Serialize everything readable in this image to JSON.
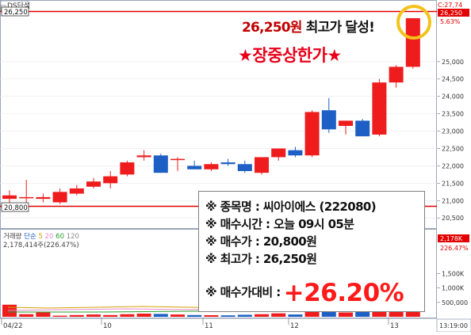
{
  "chart_title": "DS단석",
  "price_label_top": "26,250",
  "price_label_bottom": "20,800",
  "headline": {
    "price": "26,250원",
    "text": "최고가 달성!"
  },
  "headline2": "★장중상한가★",
  "axis_right": {
    "top_value": "C:27,74",
    "current": "26,250",
    "pct": "5.63%",
    "ticks": [
      "25,000",
      "24,500",
      "24,000",
      "23,500",
      "23,000",
      "22,500",
      "22,000",
      "21,500",
      "21,000",
      "20,500"
    ]
  },
  "volume": {
    "legend": {
      "name": "거래량",
      "ma_label": "단순",
      "ma5": "5",
      "ma20": "20",
      "ma60": "60",
      "ma120": "120"
    },
    "current_text": "2,178,414주(226.47%)",
    "axis_current": "2,178K",
    "axis_pct": "226.47%",
    "ticks": [
      "1,500K",
      "1,000K",
      "500,000"
    ]
  },
  "time_axis": {
    "labels": [
      "04/22",
      "10",
      "11",
      "12",
      "13"
    ],
    "right_time": "13:19:00"
  },
  "info_box": {
    "name_label": "※ 종목명 : 씨아이에스 (222080)",
    "time_label": "※ 매수시간 : 오늘 09시 05분",
    "buy_price_label": "※ 매수가 : 20,800원",
    "high_price_label": "※ 최고가 : 26,250원",
    "gain_label": "※ 매수가대비 :",
    "gain_value": "+26.20%"
  },
  "colors": {
    "up": "#ee1c1c",
    "down": "#1d5fc4",
    "ma5": "#d4a000",
    "ma20": "#e58ad0",
    "ma60": "#2a9d2a",
    "ma120": "#8a8a8a"
  },
  "chart_data": {
    "type": "candlestick",
    "ylim": [
      20300,
      26500
    ],
    "candles": [
      {
        "o": 21050,
        "h": 21300,
        "l": 20700,
        "c": 21150
      },
      {
        "o": 21100,
        "h": 21600,
        "l": 20900,
        "c": 21100
      },
      {
        "o": 21050,
        "h": 21200,
        "l": 20950,
        "c": 21100
      },
      {
        "o": 20950,
        "h": 21350,
        "l": 20900,
        "c": 21250
      },
      {
        "o": 21200,
        "h": 21450,
        "l": 21150,
        "c": 21350
      },
      {
        "o": 21400,
        "h": 21650,
        "l": 21350,
        "c": 21550
      },
      {
        "o": 21500,
        "h": 21850,
        "l": 21350,
        "c": 21700
      },
      {
        "o": 21750,
        "h": 22150,
        "l": 21700,
        "c": 22100
      },
      {
        "o": 22250,
        "h": 22450,
        "l": 22150,
        "c": 22300
      },
      {
        "o": 22300,
        "h": 22350,
        "l": 21800,
        "c": 21800
      },
      {
        "o": 22200,
        "h": 22250,
        "l": 21850,
        "c": 22200
      },
      {
        "o": 22000,
        "h": 22150,
        "l": 21900,
        "c": 21900
      },
      {
        "o": 21900,
        "h": 22100,
        "l": 21850,
        "c": 22050
      },
      {
        "o": 22100,
        "h": 22200,
        "l": 22000,
        "c": 22050
      },
      {
        "o": 22050,
        "h": 22150,
        "l": 21800,
        "c": 21850
      },
      {
        "o": 21800,
        "h": 22250,
        "l": 21750,
        "c": 22250
      },
      {
        "o": 22250,
        "h": 22500,
        "l": 22150,
        "c": 22500
      },
      {
        "o": 22450,
        "h": 22550,
        "l": 22250,
        "c": 22300
      },
      {
        "o": 22300,
        "h": 23600,
        "l": 22250,
        "c": 23550
      },
      {
        "o": 23600,
        "h": 23950,
        "l": 22950,
        "c": 23050
      },
      {
        "o": 23150,
        "h": 23300,
        "l": 22900,
        "c": 23300
      },
      {
        "o": 23300,
        "h": 23350,
        "l": 22850,
        "c": 22850
      },
      {
        "o": 22900,
        "h": 24500,
        "l": 22850,
        "c": 24400
      },
      {
        "o": 24400,
        "h": 24900,
        "l": 24250,
        "c": 24850
      },
      {
        "o": 24850,
        "h": 26250,
        "l": 24800,
        "c": 26250
      }
    ],
    "volume": [
      420,
      90,
      150,
      40,
      60,
      80,
      60,
      90,
      110,
      100,
      80,
      60,
      55,
      50,
      70,
      90,
      120,
      80,
      380,
      260,
      150,
      170,
      350,
      320,
      2178
    ]
  }
}
